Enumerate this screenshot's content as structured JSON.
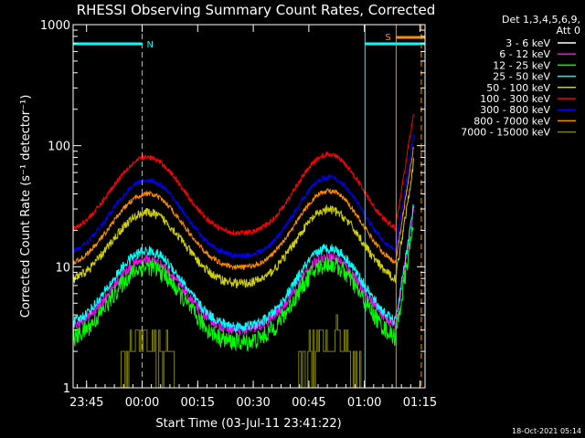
{
  "chart_data": {
    "type": "line",
    "title": "RHESSI Observing Summary Count Rates, Corrected",
    "xlabel": "Start Time (03-Jul-11 23:41:22)",
    "ylabel": "Corrected Count Rate (s⁻¹ detector⁻¹)",
    "yscale": "log",
    "ylim": [
      1,
      1000
    ],
    "xlim_minutes_after_start": [
      0,
      95
    ],
    "x_tick_labels": [
      "23:45",
      "00:00",
      "00:15",
      "00:30",
      "00:45",
      "01:00",
      "01:15"
    ],
    "x_tick_minutes_after_start": [
      3.63,
      18.63,
      33.63,
      48.63,
      63.63,
      78.63,
      93.63
    ],
    "y_tick_labels": [
      "1",
      "10",
      "100",
      "1000"
    ],
    "y_tick_values": [
      1,
      10,
      100,
      1000
    ],
    "legend_header": [
      "Det 1,3,4,5,6,9,",
      "Att 0"
    ],
    "legend_position": "right",
    "timestamp": "18-Oct-2021 05:14",
    "annotations": [
      {
        "label": "N",
        "color": "#00ffff"
      },
      {
        "label": "S",
        "color": "#ff8c00"
      }
    ],
    "markers": {
      "night_lines_minutes": [
        18.63,
        78.8
      ],
      "saa_start_minutes": 87.2,
      "end_line_minutes": 94.0
    },
    "series": [
      {
        "name": "3 - 6 keV",
        "color": "#000000",
        "shape": "bump",
        "base": 6.0,
        "amp": 1.5,
        "noise": 0.14
      },
      {
        "name": "6 - 12 keV",
        "color": "#ff00ff",
        "shape": "bump",
        "base": 11.5,
        "amp": 1.45,
        "noise": 0.04
      },
      {
        "name": "12 - 25 keV",
        "color": "#00ff00",
        "shape": "bump",
        "base": 10.0,
        "amp": 1.55,
        "noise": 0.07
      },
      {
        "name": "25 - 50 keV",
        "color": "#00ffff",
        "shape": "bump",
        "base": 13.5,
        "amp": 1.55,
        "noise": 0.04
      },
      {
        "name": "50 - 100 keV",
        "color": "#d2d200",
        "shape": "bump",
        "base": 28.0,
        "amp": 1.45,
        "noise": 0.035
      },
      {
        "name": "100 - 300 keV",
        "color": "#ff0000",
        "shape": "bump",
        "base": 80.0,
        "amp": 1.55,
        "noise": 0.02
      },
      {
        "name": "300 - 800 keV",
        "color": "#0000ff",
        "shape": "bump",
        "base": 52.0,
        "amp": 1.55,
        "noise": 0.02
      },
      {
        "name": "800 - 7000 keV",
        "color": "#ff8c00",
        "shape": "bump",
        "base": 40.0,
        "amp": 1.5,
        "noise": 0.02
      },
      {
        "name": "7000 - 15000 keV",
        "color": "#808000",
        "shape": "steps",
        "base": 2.4,
        "amp": 1.7,
        "noise": 0.0
      }
    ]
  }
}
